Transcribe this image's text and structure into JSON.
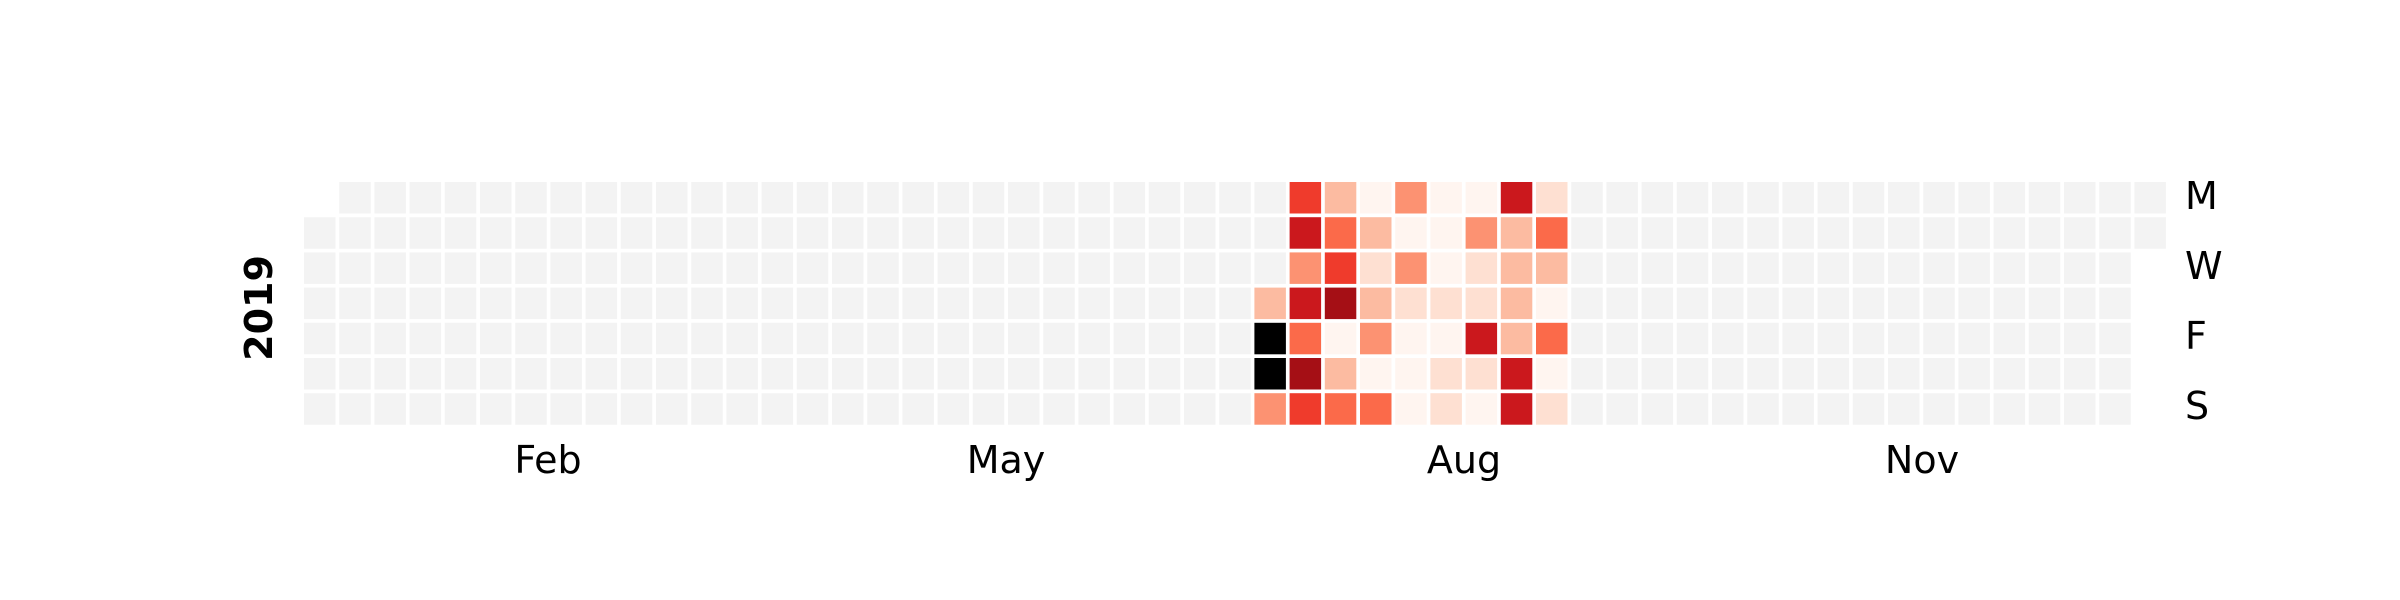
{
  "chart_data": {
    "type": "heatmap",
    "subtype": "calendar",
    "year": "2019",
    "day_labels": [
      "M",
      "W",
      "F",
      "S"
    ],
    "month_labels": [
      "Feb",
      "May",
      "Aug",
      "Nov"
    ],
    "empty_color": "#f3f3f3",
    "colormap": [
      "#fff5f0",
      "#fee0d2",
      "#fcbba1",
      "#fc9272",
      "#fb6a4a",
      "#ef3b2c",
      "#cb181d",
      "#a50f15",
      "#67000d"
    ],
    "levels": [
      {
        "week": 27,
        "values": [
          null,
          null,
          null,
          2,
          9,
          9,
          3
        ]
      },
      {
        "week": 28,
        "values": [
          5,
          6,
          3,
          6,
          4,
          7,
          5
        ]
      },
      {
        "week": 29,
        "values": [
          2,
          4,
          5,
          7,
          0,
          2,
          4
        ]
      },
      {
        "week": 30,
        "values": [
          0,
          2,
          1,
          2,
          3,
          0,
          4
        ]
      },
      {
        "week": 31,
        "values": [
          3,
          0,
          3,
          1,
          0,
          0,
          0
        ]
      },
      {
        "week": 32,
        "values": [
          0,
          0,
          0,
          1,
          0,
          1,
          1
        ]
      },
      {
        "week": 33,
        "values": [
          0,
          3,
          1,
          1,
          6,
          1,
          0
        ]
      },
      {
        "week": 34,
        "values": [
          6,
          2,
          2,
          2,
          2,
          6,
          6
        ]
      },
      {
        "week": 35,
        "values": [
          1,
          4,
          2,
          0,
          4,
          0,
          1
        ]
      }
    ]
  }
}
